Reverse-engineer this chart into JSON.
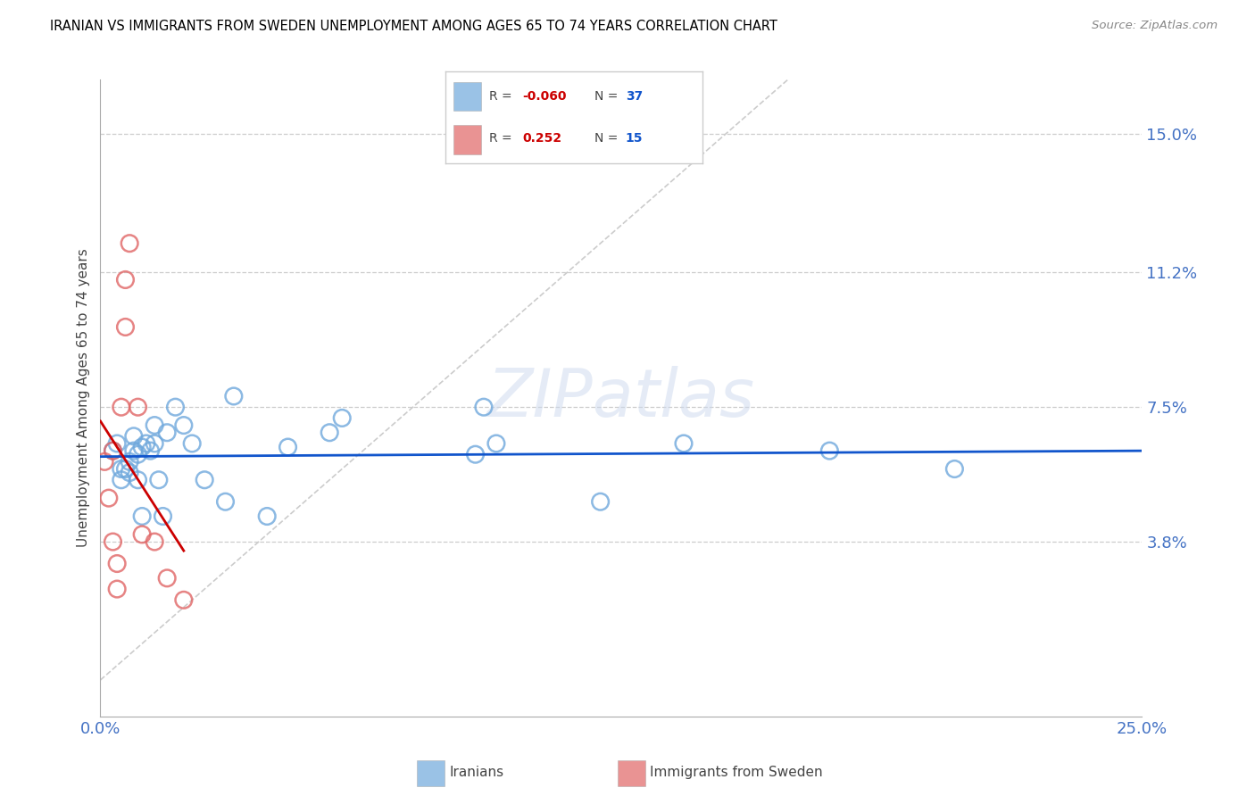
{
  "title": "IRANIAN VS IMMIGRANTS FROM SWEDEN UNEMPLOYMENT AMONG AGES 65 TO 74 YEARS CORRELATION CHART",
  "source": "Source: ZipAtlas.com",
  "ylabel": "Unemployment Among Ages 65 to 74 years",
  "xlim": [
    0.0,
    0.25
  ],
  "ylim": [
    -0.01,
    0.165
  ],
  "ytick_labels": [
    "3.8%",
    "7.5%",
    "11.2%",
    "15.0%"
  ],
  "ytick_values": [
    0.038,
    0.075,
    0.112,
    0.15
  ],
  "xtick_labels": [
    "0.0%",
    "25.0%"
  ],
  "xtick_values": [
    0.0,
    0.25
  ],
  "watermark": "ZIPatlas",
  "blue_color": "#6fa8dc",
  "pink_color": "#e06666",
  "blue_line_color": "#1155cc",
  "pink_line_color": "#cc0000",
  "iranians_x": [
    0.003,
    0.004,
    0.005,
    0.005,
    0.006,
    0.007,
    0.007,
    0.008,
    0.008,
    0.009,
    0.009,
    0.01,
    0.01,
    0.011,
    0.012,
    0.013,
    0.013,
    0.014,
    0.015,
    0.016,
    0.018,
    0.02,
    0.022,
    0.025,
    0.03,
    0.032,
    0.04,
    0.045,
    0.055,
    0.058,
    0.09,
    0.092,
    0.095,
    0.12,
    0.14,
    0.175,
    0.205
  ],
  "iranians_y": [
    0.063,
    0.065,
    0.055,
    0.058,
    0.058,
    0.06,
    0.057,
    0.063,
    0.067,
    0.055,
    0.062,
    0.045,
    0.064,
    0.065,
    0.063,
    0.065,
    0.07,
    0.055,
    0.045,
    0.068,
    0.075,
    0.07,
    0.065,
    0.055,
    0.049,
    0.078,
    0.045,
    0.064,
    0.068,
    0.072,
    0.062,
    0.075,
    0.065,
    0.049,
    0.065,
    0.063,
    0.058
  ],
  "sweden_x": [
    0.001,
    0.002,
    0.003,
    0.003,
    0.004,
    0.004,
    0.005,
    0.006,
    0.006,
    0.007,
    0.009,
    0.01,
    0.013,
    0.016,
    0.02
  ],
  "sweden_y": [
    0.06,
    0.05,
    0.063,
    0.038,
    0.032,
    0.025,
    0.075,
    0.097,
    0.11,
    0.12,
    0.075,
    0.04,
    0.038,
    0.028,
    0.022
  ]
}
